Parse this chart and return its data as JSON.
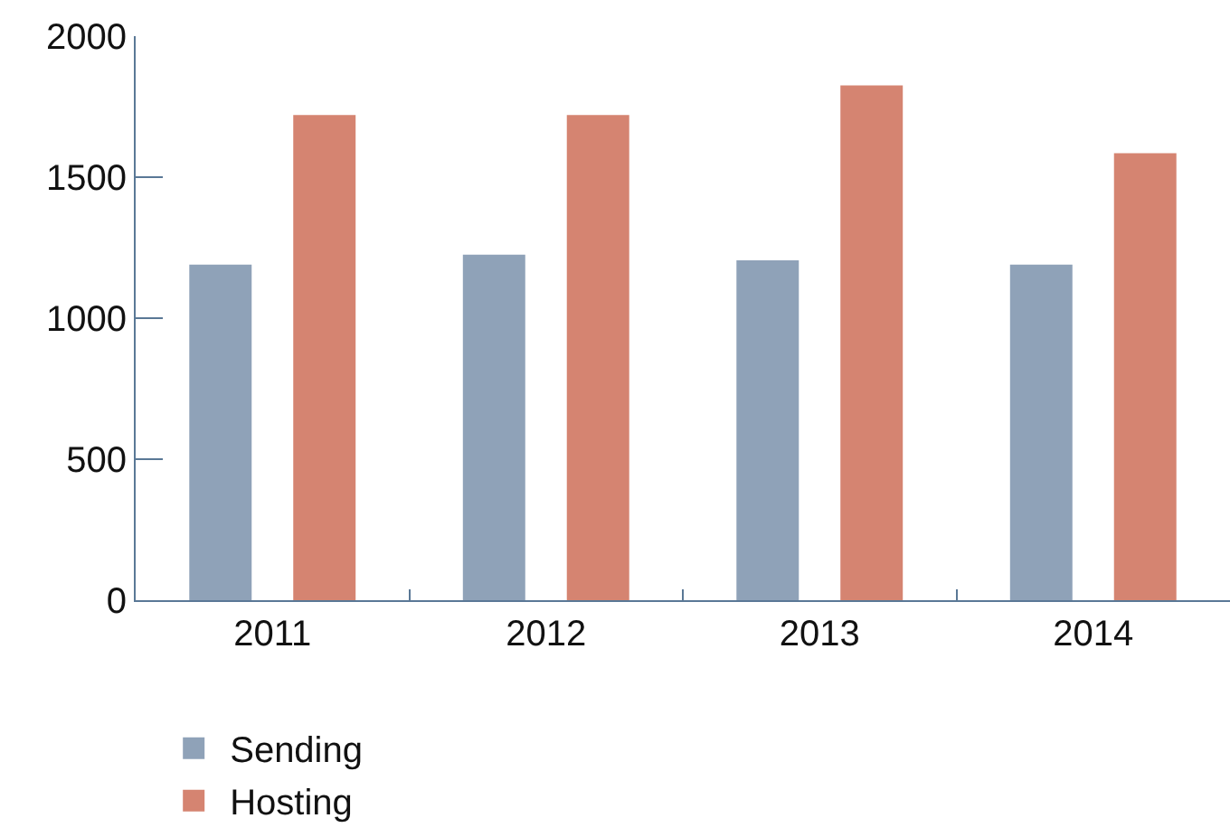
{
  "chart_data": {
    "type": "bar",
    "categories": [
      "2011",
      "2012",
      "2013",
      "2014"
    ],
    "series": [
      {
        "name": "Sending",
        "color": "#8fa2b8",
        "values": [
          1190,
          1225,
          1205,
          1190
        ]
      },
      {
        "name": "Hosting",
        "color": "#d58471",
        "values": [
          1720,
          1720,
          1825,
          1585
        ]
      }
    ],
    "ylim": [
      0,
      2000
    ],
    "yticks": [
      0,
      500,
      1000,
      1500,
      2000
    ],
    "legend": "bottom left"
  }
}
